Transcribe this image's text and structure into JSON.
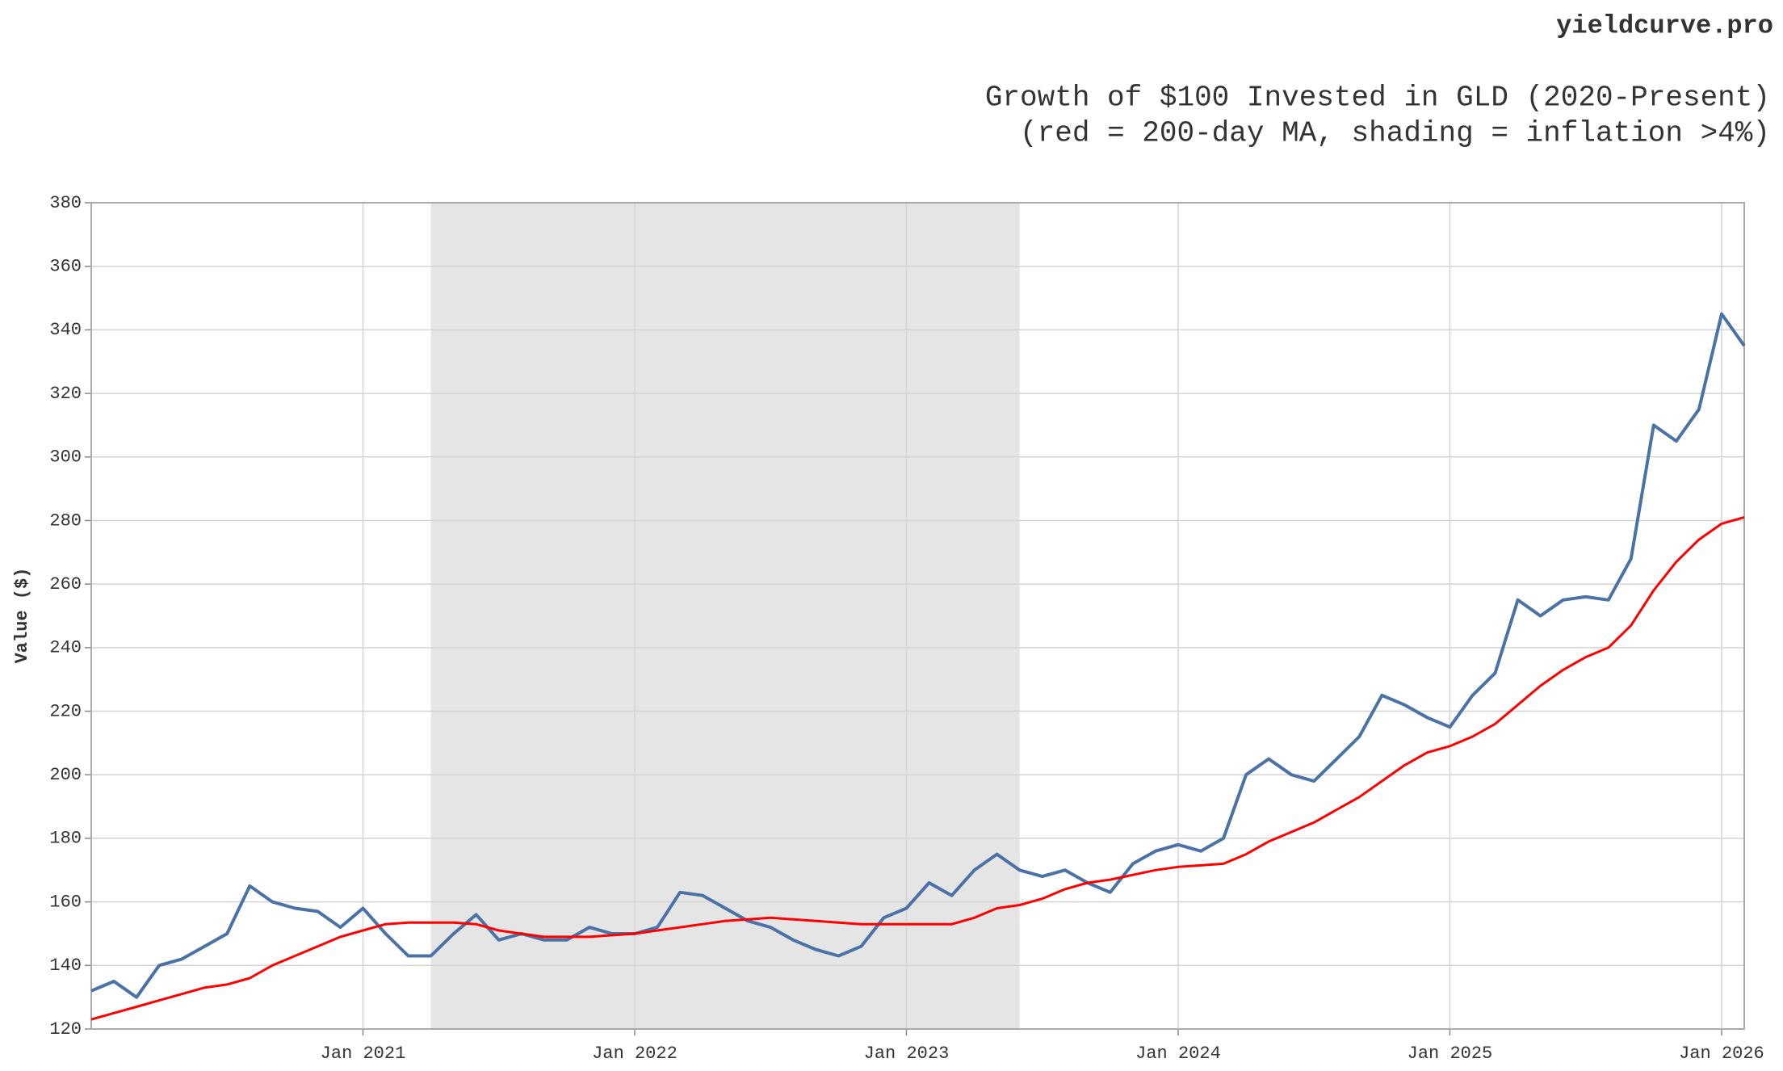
{
  "header": {
    "brand": "yieldcurve.pro"
  },
  "chart_data": {
    "type": "line",
    "title": "Growth of $100 Invested in GLD (2020-Present)",
    "subtitle": "(red = 200-day MA, shading = inflation >4%)",
    "y_label": "Value ($)",
    "x": [
      "2020-01",
      "2020-02",
      "2020-03",
      "2020-04",
      "2020-05",
      "2020-06",
      "2020-07",
      "2020-08",
      "2020-09",
      "2020-10",
      "2020-11",
      "2020-12",
      "2021-01",
      "2021-02",
      "2021-03",
      "2021-04",
      "2021-05",
      "2021-06",
      "2021-07",
      "2021-08",
      "2021-09",
      "2021-10",
      "2021-11",
      "2021-12",
      "2022-01",
      "2022-02",
      "2022-03",
      "2022-04",
      "2022-05",
      "2022-06",
      "2022-07",
      "2022-08",
      "2022-09",
      "2022-10",
      "2022-11",
      "2022-12",
      "2023-01",
      "2023-02",
      "2023-03",
      "2023-04",
      "2023-05",
      "2023-06",
      "2023-07",
      "2023-08",
      "2023-09",
      "2023-10",
      "2023-11",
      "2023-12",
      "2024-01",
      "2024-02",
      "2024-03",
      "2024-04",
      "2024-05",
      "2024-06",
      "2024-07",
      "2024-08",
      "2024-09",
      "2024-10",
      "2024-11",
      "2024-12",
      "2025-01",
      "2025-02",
      "2025-03",
      "2025-04",
      "2025-05",
      "2025-06",
      "2025-07",
      "2025-08",
      "2025-09",
      "2025-10",
      "2025-11",
      "2025-12",
      "2026-01",
      "2026-02"
    ],
    "series": [
      {
        "color": "#4a72a6",
        "values": [
          132,
          135,
          130,
          140,
          142,
          146,
          150,
          165,
          160,
          158,
          157,
          152,
          158,
          150,
          143,
          143,
          150,
          156,
          148,
          150,
          148,
          148,
          152,
          150,
          150,
          152,
          163,
          162,
          158,
          154,
          152,
          148,
          145,
          143,
          146,
          155,
          158,
          166,
          162,
          170,
          175,
          170,
          168,
          170,
          166,
          163,
          172,
          176,
          178,
          176,
          180,
          200,
          205,
          200,
          198,
          205,
          212,
          225,
          222,
          218,
          215,
          225,
          232,
          255,
          250,
          255,
          256,
          255,
          268,
          310,
          305,
          315,
          345,
          335
        ]
      },
      {
        "color": "#ff0000",
        "values": [
          123,
          125,
          127,
          129,
          131,
          133,
          134,
          136,
          140,
          143,
          146,
          149,
          151,
          153,
          153.5,
          153.5,
          153.5,
          153,
          151,
          150,
          149,
          149,
          149,
          149.5,
          150,
          151,
          152,
          153,
          154,
          154.5,
          155,
          154.5,
          154,
          153.5,
          153,
          153,
          153,
          153,
          153,
          155,
          158,
          159,
          161,
          164,
          166,
          167,
          168.5,
          170,
          171,
          171.5,
          172,
          175,
          179,
          182,
          185,
          189,
          193,
          198,
          203,
          207,
          209,
          212,
          216,
          222,
          228,
          233,
          237,
          240,
          247,
          258,
          267,
          274,
          279,
          281
        ]
      }
    ],
    "shading": [
      {
        "start": "2021-04",
        "end": "2023-06",
        "color": "#e5e5e5"
      }
    ],
    "xlim": [
      "2020-01",
      "2026-02"
    ],
    "xticks": [
      {
        "value": "2021-01",
        "label": "Jan 2021"
      },
      {
        "value": "2022-01",
        "label": "Jan 2022"
      },
      {
        "value": "2023-01",
        "label": "Jan 2023"
      },
      {
        "value": "2024-01",
        "label": "Jan 2024"
      },
      {
        "value": "2025-01",
        "label": "Jan 2025"
      },
      {
        "value": "2026-01",
        "label": "Jan 2026"
      }
    ],
    "ylim": [
      120,
      380
    ],
    "yticks": [
      120,
      140,
      160,
      180,
      200,
      220,
      240,
      260,
      280,
      300,
      320,
      340,
      360,
      380
    ],
    "grid": true
  }
}
